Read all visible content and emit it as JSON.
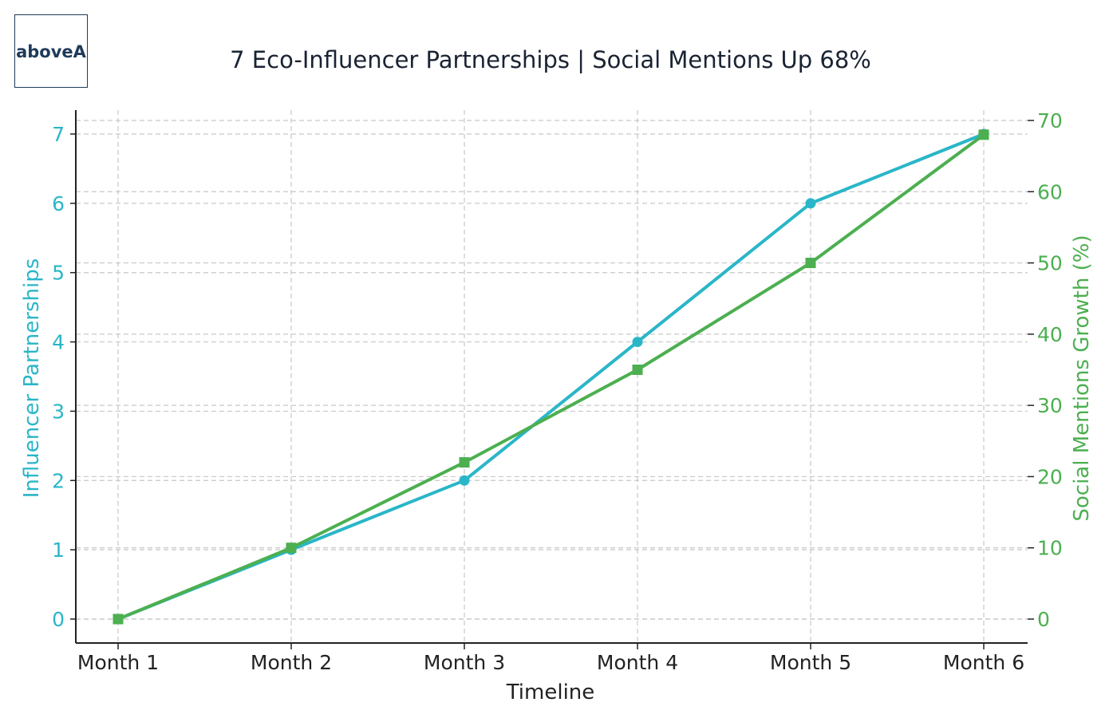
{
  "logo": {
    "text": "aboveA"
  },
  "colors": {
    "left_series": "#29b6c8",
    "right_series": "#4caf50",
    "axis": "#222222",
    "grid": "#c8c8c8",
    "text": "#1a2333"
  },
  "chart_data": {
    "type": "line",
    "title": "7 Eco-Influencer Partnerships | Social Mentions Up 68%",
    "xlabel": "Timeline",
    "categories": [
      "Month 1",
      "Month 2",
      "Month 3",
      "Month 4",
      "Month 5",
      "Month 6"
    ],
    "y_left": {
      "label": "Influencer Partnerships",
      "range": [
        0,
        7
      ],
      "ticks": [
        "0",
        "1",
        "2",
        "3",
        "4",
        "5",
        "6",
        "7"
      ]
    },
    "y_right": {
      "label": "Social Mentions Growth (%)",
      "range": [
        0,
        70
      ],
      "ticks": [
        "0",
        "10",
        "20",
        "30",
        "40",
        "50",
        "60",
        "70"
      ]
    },
    "series": [
      {
        "axis": "left",
        "marker": "circle",
        "values": [
          0,
          1,
          2,
          4,
          6,
          7
        ]
      },
      {
        "axis": "right",
        "marker": "square",
        "values": [
          0,
          10,
          22,
          35,
          50,
          68
        ]
      }
    ],
    "grid": true
  }
}
